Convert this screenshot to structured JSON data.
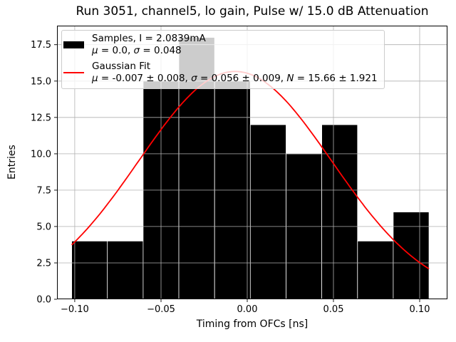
{
  "chart_data": {
    "type": "bar",
    "title": "Run 3051, channel5, lo gain, Pulse w/ 15.0 dB Attenuation",
    "xlabel": "Timing from OFCs [ns]",
    "ylabel": "Entries",
    "xlim": [
      -0.1103,
      0.1161
    ],
    "ylim": [
      0,
      18.81
    ],
    "grid": {
      "on": true,
      "color": "#b0b0b0"
    },
    "x_ticks": {
      "values": [
        -0.1,
        -0.05,
        0.0,
        0.05,
        0.1
      ],
      "labels": [
        "−0.10",
        "−0.05",
        "0.00",
        "0.05",
        "0.10"
      ]
    },
    "y_ticks": {
      "values": [
        0.0,
        2.5,
        5.0,
        7.5,
        10.0,
        12.5,
        15.0,
        17.5
      ],
      "labels": [
        "0.0",
        "2.5",
        "5.0",
        "7.5",
        "10.0",
        "12.5",
        "15.0",
        "17.5"
      ]
    },
    "histogram": {
      "bin_edges": [
        -0.1018,
        -0.08108,
        -0.06036,
        -0.03964,
        -0.01892,
        0.0018,
        0.02252,
        0.04324,
        0.06396,
        0.08468,
        0.1054
      ],
      "counts": [
        4,
        4,
        15,
        18,
        15,
        12,
        10,
        12,
        4,
        6
      ],
      "color": "#000000",
      "edge_color": "#ffffff",
      "stats": {
        "mu": 0.0,
        "sigma": 0.048,
        "total_entries": 100
      }
    },
    "gaussian_fit": {
      "mu": -0.007,
      "mu_err": 0.008,
      "sigma": 0.056,
      "sigma_err": 0.009,
      "amplitude": 15.66,
      "amplitude_err": 1.921,
      "color": "#ff0000",
      "x_range": [
        -0.1018,
        0.1054
      ]
    },
    "legend": {
      "position": "upper-left",
      "entries": [
        {
          "swatch": "black-rect",
          "lines": [
            {
              "segments": [
                {
                  "text": "Samples, I = 2.0839mA",
                  "italic": false
                }
              ]
            },
            {
              "segments": [
                {
                  "text": "μ",
                  "italic": true
                },
                {
                  "text": " = 0.0, ",
                  "italic": false
                },
                {
                  "text": "σ",
                  "italic": true
                },
                {
                  "text": " = 0.048",
                  "italic": false
                }
              ]
            }
          ]
        },
        {
          "swatch": "red-line",
          "lines": [
            {
              "segments": [
                {
                  "text": "Gaussian Fit",
                  "italic": false
                }
              ]
            },
            {
              "segments": [
                {
                  "text": "μ",
                  "italic": true
                },
                {
                  "text": " = -0.007 ± 0.008, ",
                  "italic": false
                },
                {
                  "text": "σ",
                  "italic": true
                },
                {
                  "text": " = 0.056 ± 0.009, ",
                  "italic": false
                },
                {
                  "text": "N",
                  "italic": true
                },
                {
                  "text": " = 15.66 ± 1.921",
                  "italic": false
                }
              ]
            }
          ]
        }
      ]
    }
  }
}
